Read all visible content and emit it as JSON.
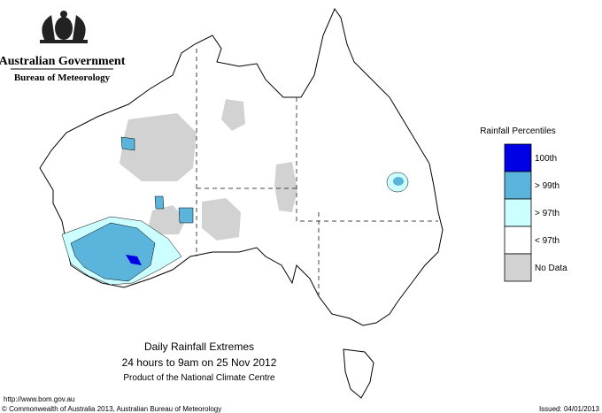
{
  "header": {
    "government": "Australian Government",
    "agency": "Bureau of Meteorology"
  },
  "title": {
    "line1": "Daily Rainfall Extremes",
    "line2": "24 hours to 9am on 25 Nov 2012",
    "line3": "Product of the National Climate Centre"
  },
  "legend": {
    "title": "Rainfall Percentiles",
    "items": [
      {
        "label": "100th",
        "color": "#0000e6"
      },
      {
        "label": "> 99th",
        "color": "#5ab4dc"
      },
      {
        "label": "> 97th",
        "color": "#ccffff"
      },
      {
        "label": "< 97th",
        "color": "#ffffff"
      },
      {
        "label": "No Data",
        "color": "#d2d2d2"
      }
    ]
  },
  "footer": {
    "url": "http://www.bom.gov.au",
    "copyright": "© Commonwealth of Australia 2013, Australian Bureau of Meteorology",
    "issued": "Issued: 04/01/2013"
  }
}
